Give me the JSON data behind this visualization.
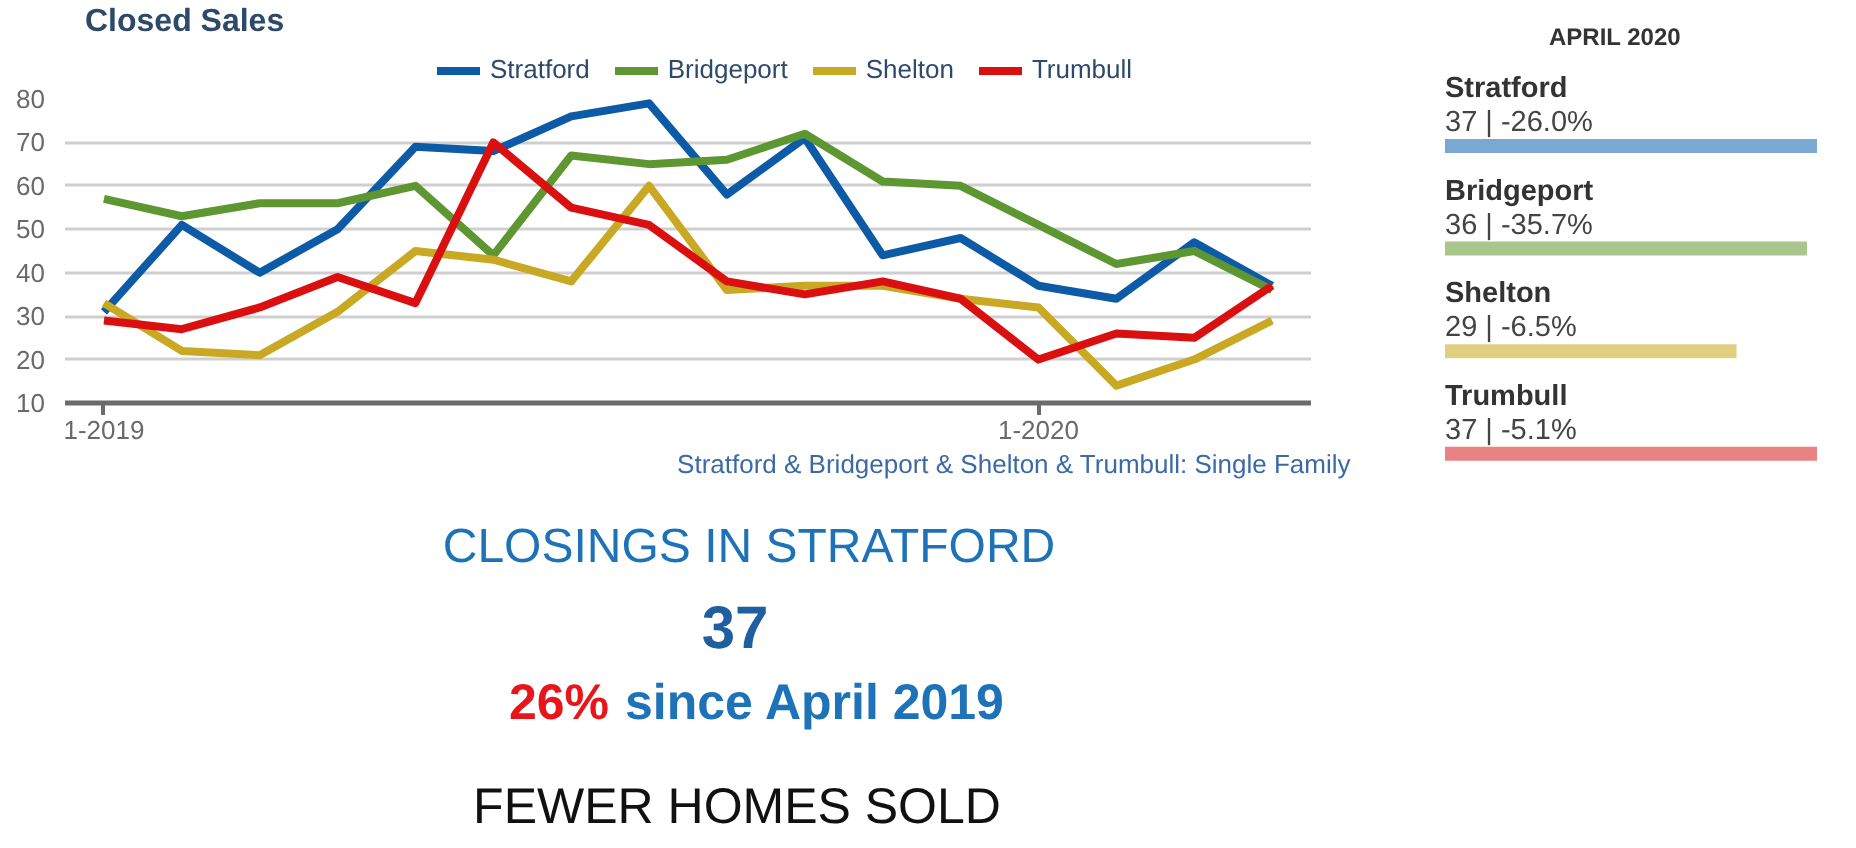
{
  "chart_data": [
    {
      "type": "line",
      "title": "Closed Sales",
      "categories": [
        "1-2019",
        null,
        null,
        null,
        null,
        null,
        null,
        null,
        null,
        null,
        null,
        null,
        "1-2020",
        null,
        null,
        null
      ],
      "series": [
        {
          "name": "Stratford",
          "color": "#0d5aa7",
          "values": [
            31,
            51,
            40,
            50,
            69,
            68,
            76,
            79,
            58,
            71,
            44,
            48,
            37,
            34,
            47,
            37
          ]
        },
        {
          "name": "Bridgeport",
          "color": "#5e9732",
          "values": [
            57,
            53,
            56,
            56,
            60,
            44,
            67,
            65,
            66,
            72,
            61,
            60,
            51,
            42,
            45,
            36
          ]
        },
        {
          "name": "Shelton",
          "color": "#c9a824",
          "values": [
            33,
            22,
            21,
            31,
            45,
            43,
            38,
            60,
            36,
            37,
            37,
            34,
            32,
            14,
            20,
            29
          ]
        },
        {
          "name": "Trumbull",
          "color": "#d9100f",
          "values": [
            29,
            27,
            32,
            39,
            33,
            70,
            55,
            51,
            38,
            35,
            38,
            34,
            20,
            26,
            25,
            37
          ]
        }
      ],
      "ylim": [
        10,
        80
      ],
      "yticks": [
        10,
        20,
        30,
        40,
        50,
        60,
        70,
        80
      ],
      "grid": "y",
      "legend": "top",
      "annotations": [
        "Stratford & Bridgeport & Shelton & Trumbull: Single Family"
      ]
    },
    {
      "type": "bar",
      "orientation": "horizontal",
      "title": "APRIL 2020",
      "categories": [
        "Stratford",
        "Bridgeport",
        "Shelton",
        "Trumbull"
      ],
      "values": [
        37,
        36,
        29,
        37
      ],
      "colors": [
        "#7aa8d2",
        "#a9c68c",
        "#e0cf80",
        "#e88383"
      ],
      "value_labels": [
        "37 | -26.0%",
        "36 | -35.7%",
        "29 | -6.5%",
        "37 | -5.1%"
      ]
    },
    {
      "type": "other",
      "title": "CLOSINGS IN STRATFORD",
      "annotations": [
        "37",
        "26%",
        "since April 2019",
        "FEWER HOMES SOLD"
      ]
    }
  ]
}
